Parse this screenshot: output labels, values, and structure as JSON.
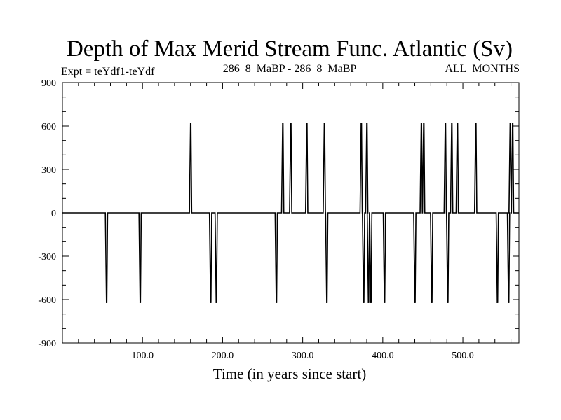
{
  "chart_data": {
    "type": "line",
    "title": "Depth of Max Merid Stream Func. Atlantic (Sv)",
    "left_label": "Expt = teYdf1-teYdf",
    "center_label": "286_8_MaBP - 286_8_MaBP",
    "right_label": "ALL_MONTHS",
    "xlabel": "Time (in years since start)",
    "ylabel": "",
    "xlim": [
      0,
      570
    ],
    "ylim": [
      -900,
      900
    ],
    "x_ticks": [
      100,
      200,
      300,
      400,
      500
    ],
    "x_tick_labels": [
      "100.0",
      "200.0",
      "300.0",
      "400.0",
      "500.0"
    ],
    "y_ticks": [
      -900,
      -600,
      -300,
      0,
      300,
      600,
      900
    ],
    "y_tick_labels": [
      "-900",
      "-600",
      "-300",
      "0",
      "300",
      "600",
      "900"
    ],
    "grid": false,
    "series": [
      {
        "color": "#000000",
        "spikes": [
          {
            "x": 55,
            "value": -620
          },
          {
            "x": 97,
            "value": -620
          },
          {
            "x": 160,
            "value": 620
          },
          {
            "x": 185,
            "value": -620
          },
          {
            "x": 192,
            "value": -620
          },
          {
            "x": 267,
            "value": -620
          },
          {
            "x": 275,
            "value": 620
          },
          {
            "x": 285,
            "value": 620
          },
          {
            "x": 305,
            "value": 620
          },
          {
            "x": 327,
            "value": 620
          },
          {
            "x": 330,
            "value": -620
          },
          {
            "x": 373,
            "value": 620
          },
          {
            "x": 376,
            "value": -620
          },
          {
            "x": 380,
            "value": 620
          },
          {
            "x": 382,
            "value": -620
          },
          {
            "x": 385,
            "value": -620
          },
          {
            "x": 402,
            "value": -620
          },
          {
            "x": 440,
            "value": -620
          },
          {
            "x": 448,
            "value": 620
          },
          {
            "x": 451,
            "value": 620
          },
          {
            "x": 461,
            "value": -620
          },
          {
            "x": 478,
            "value": 620
          },
          {
            "x": 481,
            "value": -620
          },
          {
            "x": 486,
            "value": 620
          },
          {
            "x": 493,
            "value": 620
          },
          {
            "x": 516,
            "value": 620
          },
          {
            "x": 543,
            "value": -620
          },
          {
            "x": 557,
            "value": -620
          },
          {
            "x": 559,
            "value": 620
          },
          {
            "x": 562,
            "value": 620
          }
        ]
      }
    ]
  }
}
